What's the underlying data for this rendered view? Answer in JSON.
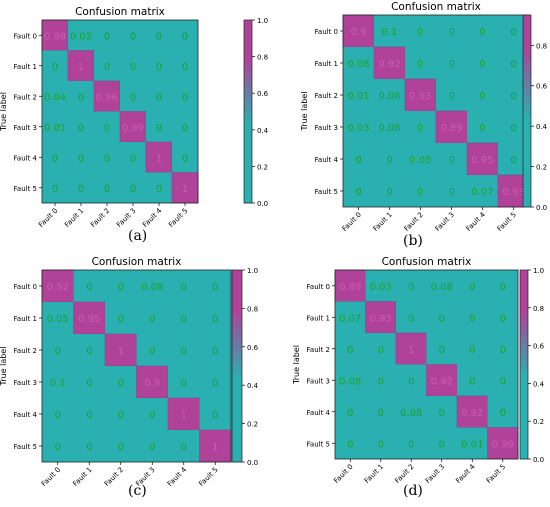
{
  "panel_labels": [
    "(a)",
    "(b)",
    "(c)",
    "(d)"
  ],
  "chart_data": [
    {
      "type": "heatmap",
      "title": "Confusion matrix",
      "ylabel": "True label",
      "xlabel": "",
      "row_labels": [
        "Fault 0",
        "Fault 1",
        "Fault 2",
        "Fault 3",
        "Fault 4",
        "Fault 5"
      ],
      "col_labels": [
        "Fault 0",
        "Fault 1",
        "Fault 2",
        "Fault 3",
        "Fault 4",
        "Fault 5"
      ],
      "values": [
        [
          0.98,
          0.02,
          0.0,
          0.0,
          0.0,
          0.0
        ],
        [
          0.0,
          1.0,
          0.0,
          0.0,
          0.0,
          0.0
        ],
        [
          0.04,
          0.0,
          0.96,
          0.0,
          0.0,
          0.0
        ],
        [
          0.01,
          0.0,
          0.0,
          0.99,
          0.0,
          0.0
        ],
        [
          0.0,
          0.0,
          0.0,
          0.0,
          1.0,
          0.0
        ],
        [
          0.0,
          0.0,
          0.0,
          0.0,
          0.0,
          1.0
        ]
      ],
      "colorbar_ticks": [
        "0.0",
        "0.2",
        "0.4",
        "0.6",
        "0.8",
        "1.0"
      ],
      "colorbar_max": 1.0
    },
    {
      "type": "heatmap",
      "title": "Confusion matrix",
      "ylabel": "True label",
      "xlabel": "",
      "row_labels": [
        "Fault 0",
        "Fault 1",
        "Fault 2",
        "Fault 3",
        "Fault 4",
        "Fault 5"
      ],
      "col_labels": [
        "Fault 0",
        "Fault 1",
        "Fault 2",
        "Fault 3",
        "Fault 4",
        "Fault 5"
      ],
      "values": [
        [
          0.9,
          0.1,
          0.0,
          0.0,
          0.0,
          0.0
        ],
        [
          0.08,
          0.92,
          0.0,
          0.0,
          0.0,
          0.0
        ],
        [
          0.01,
          0.06,
          0.93,
          0.0,
          0.0,
          0.0
        ],
        [
          0.03,
          0.08,
          0.0,
          0.89,
          0.0,
          0.0
        ],
        [
          0.0,
          0.0,
          0.05,
          0.0,
          0.95,
          0.0
        ],
        [
          0.0,
          0.0,
          0.0,
          0.0,
          0.07,
          0.93
        ]
      ],
      "colorbar_ticks": [
        "0.0",
        "0.2",
        "0.4",
        "0.6",
        "0.8"
      ],
      "colorbar_max": 0.95
    },
    {
      "type": "heatmap",
      "title": "Confusion matrix",
      "ylabel": "True label",
      "xlabel": "",
      "row_labels": [
        "Fault 0",
        "Fault 1",
        "Fault 2",
        "Fault 3",
        "Fault 4",
        "Fault 5"
      ],
      "col_labels": [
        "Fault 0",
        "Fault 1",
        "Fault 2",
        "Fault 3",
        "Fault 4",
        "Fault 5"
      ],
      "values": [
        [
          0.92,
          0.0,
          0.0,
          0.08,
          0.0,
          0.0
        ],
        [
          0.05,
          0.95,
          0.0,
          0.0,
          0.0,
          0.0
        ],
        [
          0.0,
          0.0,
          1.0,
          0.0,
          0.0,
          0.0
        ],
        [
          0.1,
          0.0,
          0.0,
          0.9,
          0.0,
          0.0
        ],
        [
          0.0,
          0.0,
          0.0,
          0.0,
          1.0,
          0.0
        ],
        [
          0.0,
          0.0,
          0.0,
          0.0,
          0.0,
          1.0
        ]
      ],
      "colorbar_ticks": [
        "0.0",
        "0.2",
        "0.4",
        "0.6",
        "0.8",
        "1.0"
      ],
      "colorbar_max": 1.0
    },
    {
      "type": "heatmap",
      "title": "Confusion matrix",
      "ylabel": "True label",
      "xlabel": "",
      "row_labels": [
        "Fault 0",
        "Fault 1",
        "Fault 2",
        "Fault 3",
        "Fault 4",
        "Fault 5"
      ],
      "col_labels": [
        "Fault 0",
        "Fault 1",
        "Fault 2",
        "Fault 3",
        "Fault 4",
        "Fault 5"
      ],
      "values": [
        [
          0.89,
          0.03,
          0.0,
          0.08,
          0.0,
          0.0
        ],
        [
          0.07,
          0.93,
          0.0,
          0.0,
          0.0,
          0.0
        ],
        [
          0.0,
          0.0,
          1.0,
          0.0,
          0.0,
          0.0
        ],
        [
          0.08,
          0.0,
          0.0,
          0.92,
          0.0,
          0.0
        ],
        [
          0.0,
          0.0,
          0.08,
          0.0,
          0.92,
          0.0
        ],
        [
          0.0,
          0.0,
          0.0,
          0.0,
          0.01,
          0.99
        ]
      ],
      "colorbar_ticks": [
        "0.0",
        "0.2",
        "0.4",
        "0.6",
        "0.8",
        "1.0"
      ],
      "colorbar_max": 1.0
    }
  ],
  "colors": {
    "low": "#2ab0b0",
    "high": "#b0429a",
    "text_low": "#1aa32a",
    "text_high": "#cf5ab4"
  }
}
